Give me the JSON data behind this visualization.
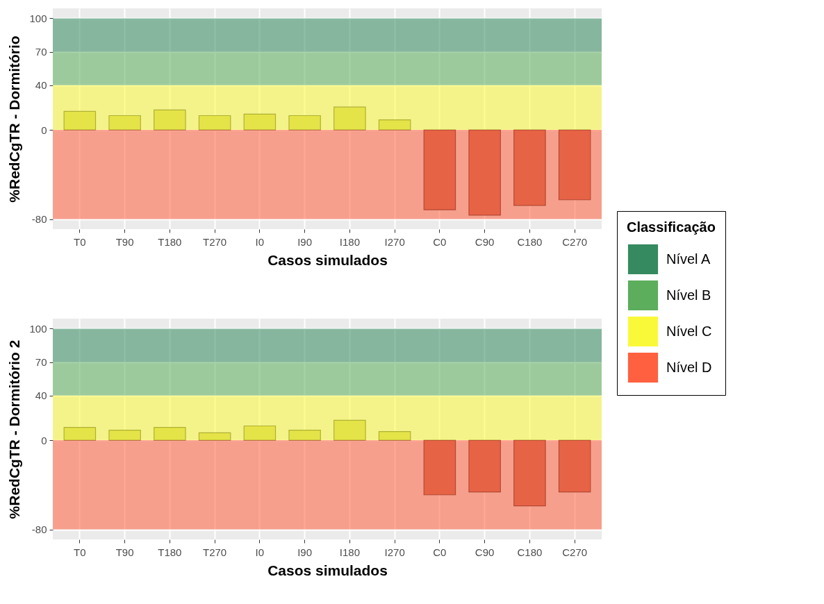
{
  "chart_data": [
    {
      "type": "bar",
      "ylabel": "%RedCgTR - Dormitório",
      "xlabel": "Casos simulados",
      "legend_title": "Classificação",
      "legend": "right",
      "grid": true,
      "categories": [
        "T0",
        "T90",
        "T180",
        "T270",
        "I0",
        "I90",
        "I180",
        "I270",
        "C0",
        "C90",
        "C180",
        "C270"
      ],
      "values": [
        16.6,
        12.8,
        17.9,
        12.8,
        14.1,
        12.8,
        20.5,
        9.0,
        -71.7,
        -76.5,
        -67.8,
        -62.7
      ],
      "colors": [
        "#c9c85a",
        "#c9c85a",
        "#c9c85a",
        "#c9c85a",
        "#c9c85a",
        "#c9c85a",
        "#c9c85a",
        "#c9c85a",
        "#c9664f",
        "#c9664f",
        "#c9664f",
        "#c9664f"
      ],
      "ylim": [
        -89,
        109
      ],
      "yticks": [
        -80,
        0,
        40,
        70,
        100
      ],
      "bands": [
        {
          "axis": "y",
          "from": 70,
          "to": 100,
          "label": "Nível A",
          "color": "#358a5f"
        },
        {
          "axis": "y",
          "from": 40,
          "to": 70,
          "label": "Nível B",
          "color": "#5cae5c"
        },
        {
          "axis": "y",
          "from": 0,
          "to": 40,
          "label": "Nível C",
          "color": "#f9f93a"
        },
        {
          "axis": "y",
          "from": -80,
          "to": 0,
          "label": "Nível D",
          "color": "#ff6040"
        }
      ]
    },
    {
      "type": "bar",
      "ylabel": "%RedCgTR - Dormitório 2",
      "xlabel": "Casos simulados",
      "grid": true,
      "categories": [
        "T0",
        "T90",
        "T180",
        "T270",
        "I0",
        "I90",
        "I180",
        "I270",
        "C0",
        "C90",
        "C180",
        "C270"
      ],
      "values": [
        11.5,
        9.0,
        11.5,
        6.7,
        12.8,
        9.0,
        17.9,
        7.7,
        -49.0,
        -46.4,
        -58.9,
        -46.4
      ],
      "colors": [
        "#c9c85a",
        "#c9c85a",
        "#c9c85a",
        "#c9c85a",
        "#c9c85a",
        "#c9c85a",
        "#c9c85a",
        "#c9c85a",
        "#c9664f",
        "#c9664f",
        "#c9664f",
        "#c9664f"
      ],
      "ylim": [
        -89,
        109
      ],
      "yticks": [
        -80,
        0,
        40,
        70,
        100
      ],
      "bands": [
        {
          "axis": "y",
          "from": 70,
          "to": 100,
          "color": "#358a5f"
        },
        {
          "axis": "y",
          "from": 40,
          "to": 70,
          "color": "#5cae5c"
        },
        {
          "axis": "y",
          "from": 0,
          "to": 40,
          "color": "#f9f93a"
        },
        {
          "axis": "y",
          "from": -80,
          "to": 0,
          "color": "#ff6040"
        }
      ]
    }
  ]
}
